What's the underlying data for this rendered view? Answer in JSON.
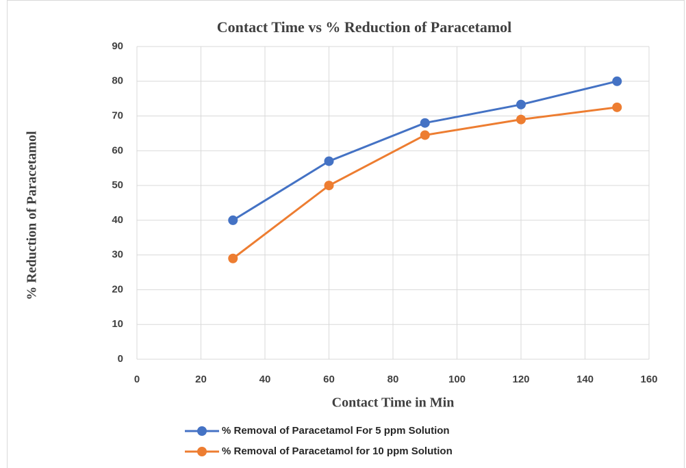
{
  "chart_data": {
    "type": "line",
    "title": "Contact Time vs % Reduction of Paracetamol",
    "x_label": "Contact Time in Min",
    "y_label": "% Reduction of Paracetamol",
    "x": [
      30,
      60,
      90,
      120,
      150
    ],
    "series": [
      {
        "name": "% Removal of Paracetamol For 5 ppm Solution",
        "color": "#4472c4",
        "values": [
          40,
          57,
          68,
          73.3,
          80
        ]
      },
      {
        "name": "% Removal of Paracetamol for 10 ppm Solution",
        "color": "#ed7d31",
        "values": [
          29,
          50,
          64.5,
          69,
          72.5
        ]
      }
    ],
    "xlim": [
      0,
      160
    ],
    "xticks": [
      0,
      20,
      40,
      60,
      80,
      100,
      120,
      140,
      160
    ],
    "ylim": [
      0,
      90
    ],
    "yticks": [
      0,
      10,
      20,
      30,
      40,
      50,
      60,
      70,
      80,
      90
    ],
    "grid": true,
    "legend": "bottom"
  }
}
